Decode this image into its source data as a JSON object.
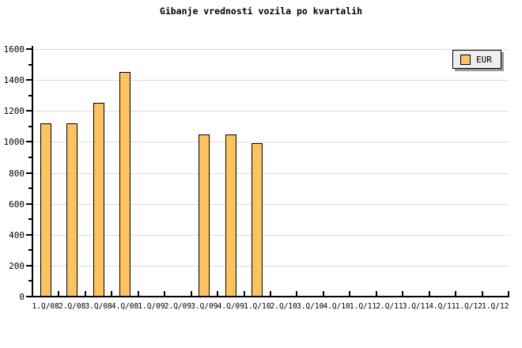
{
  "title": "Gibanje vrednosti vozila po kvartalih",
  "legend": {
    "label": "EUR"
  },
  "colors": {
    "background": "#ffffff",
    "bar_fill": "#fcc35f",
    "bar_border": "#000000",
    "gridline": "#dddddd",
    "axis": "#000000",
    "legend_bg": "#eeeeee",
    "legend_shadow": "#999999",
    "text": "#000000"
  },
  "chart_data": {
    "type": "bar",
    "title": "Gibanje vrednosti vozila po kvartalih",
    "xlabel": "",
    "ylabel": "",
    "categories": [
      "1.Q/08",
      "2.Q/08",
      "3.Q/08",
      "4.Q/08",
      "1.Q/09",
      "2.Q/09",
      "3.Q/09",
      "4.Q/09",
      "1.Q/10",
      "2.Q/10",
      "3.Q/10",
      "4.Q/10",
      "1.Q/11",
      "2.Q/11",
      "3.Q/11",
      "4.Q/11",
      "1.Q/12",
      "1.Q/12"
    ],
    "series": [
      {
        "name": "EUR",
        "values": [
          1120,
          1120,
          1250,
          1450,
          null,
          null,
          1050,
          1050,
          990,
          null,
          null,
          null,
          null,
          null,
          null,
          null,
          null,
          null
        ]
      }
    ],
    "ylim": [
      0,
      1600
    ],
    "y_ticks": [
      0,
      200,
      400,
      600,
      800,
      1000,
      1200,
      1400,
      1600
    ],
    "y_minor_step": 100,
    "grid": "horizontal-major",
    "legend_position": "top-right"
  }
}
